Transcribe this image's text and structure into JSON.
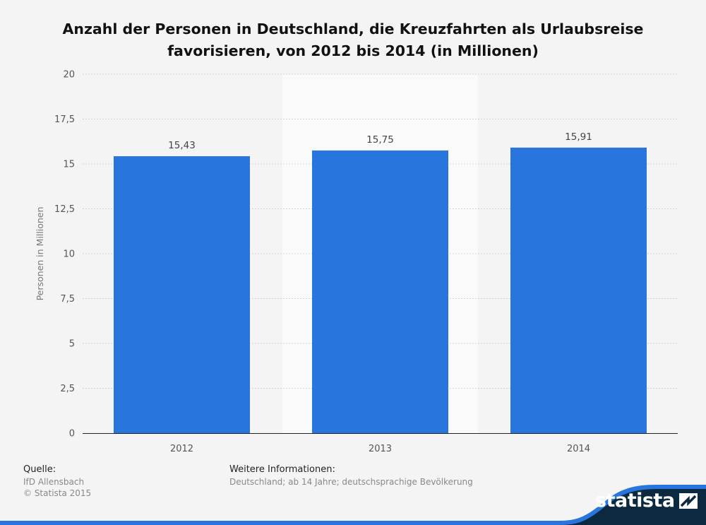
{
  "title": "Anzahl der Personen in Deutschland, die Kreuzfahrten als Urlaubsreise favorisieren, von 2012 bis 2014 (in Millionen)",
  "chart_data": {
    "type": "bar",
    "title": "Anzahl der Personen in Deutschland, die Kreuzfahrten als Urlaubsreise favorisieren, von 2012 bis 2014 (in Millionen)",
    "categories": [
      "2012",
      "2013",
      "2014"
    ],
    "values": [
      15.43,
      15.75,
      15.91
    ],
    "value_labels": [
      "15,43",
      "15,75",
      "15,91"
    ],
    "xlabel": "",
    "ylabel": "Personen in Millionen",
    "ylim": [
      0,
      20
    ],
    "yticks": [
      0,
      2.5,
      5,
      7.5,
      10,
      12.5,
      15,
      17.5,
      20
    ],
    "ytick_labels": [
      "0",
      "2,5",
      "5",
      "7,5",
      "10",
      "12,5",
      "15",
      "17,5",
      "20"
    ],
    "grid": true,
    "highlighted_category": "2013",
    "bar_color": "#2876dd"
  },
  "footer": {
    "source_heading": "Quelle:",
    "source_lines": [
      "IfD Allensbach",
      "© Statista 2015"
    ],
    "info_heading": "Weitere Informationen:",
    "info_text": "Deutschland; ab 14 Jahre; deutschsprachige Bevölkerung"
  },
  "brand": {
    "name": "statista",
    "color_dark": "#0c2a3f",
    "color_accent": "#2876dd"
  }
}
